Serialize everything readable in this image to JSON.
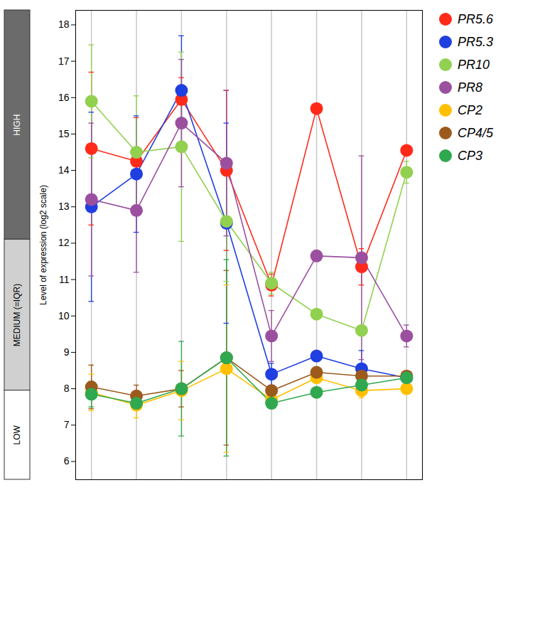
{
  "chart_data": {
    "type": "line",
    "y_label": "Level of expression (log2 scale)",
    "categories": [
      null,
      null,
      null,
      null,
      null,
      null,
      null,
      null
    ],
    "ylim": [
      5.5,
      18.4
    ],
    "yticks": [
      6,
      7,
      8,
      9,
      10,
      11,
      12,
      13,
      14,
      15,
      16,
      17,
      18
    ],
    "grid": "x",
    "legend": "right",
    "marker": "circle",
    "expression_levels": [
      {
        "label": "HIGH",
        "from": 12.1,
        "to": 18.4
      },
      {
        "label": "MEDIUM (=IQR)",
        "from": 7.95,
        "to": 12.1
      },
      {
        "label": "LOW",
        "from": 5.5,
        "to": 7.95
      }
    ],
    "series": [
      {
        "name": "PR5.6",
        "color": "#ff2a1a",
        "values": [
          14.6,
          14.25,
          15.95,
          14.0,
          10.85,
          15.7,
          11.35,
          14.55
        ],
        "errors": [
          2.1,
          1.2,
          0.6,
          2.2,
          0.3,
          0.05,
          0.5,
          0.1
        ]
      },
      {
        "name": "PR5.3",
        "color": "#1f3fe0",
        "values": [
          13.0,
          13.9,
          16.2,
          12.55,
          8.4,
          8.9,
          8.55,
          8.3
        ],
        "errors": [
          2.6,
          1.6,
          1.5,
          2.75,
          0.3,
          0.1,
          0.5,
          0.05
        ]
      },
      {
        "name": "PR10",
        "color": "#92d050",
        "values": [
          15.9,
          14.5,
          14.65,
          12.6,
          10.9,
          10.05,
          9.6,
          13.95
        ],
        "errors": [
          1.55,
          1.55,
          2.6,
          1.65,
          0.3,
          0.05,
          0.1,
          0.3
        ]
      },
      {
        "name": "PR8",
        "color": "#9b4f9f",
        "values": [
          13.2,
          12.9,
          15.3,
          14.2,
          9.45,
          11.65,
          11.6,
          9.45
        ],
        "errors": [
          2.1,
          1.7,
          1.75,
          2.0,
          0.7,
          0.15,
          2.8,
          0.3
        ]
      },
      {
        "name": "CP2",
        "color": "#ffc000",
        "values": [
          7.9,
          7.55,
          7.95,
          8.55,
          7.7,
          8.3,
          7.95,
          8.0
        ],
        "errors": [
          0.5,
          0.35,
          0.8,
          2.3,
          0.1,
          0.1,
          0.2,
          0.1
        ]
      },
      {
        "name": "CP4/5",
        "color": "#9c5a1c",
        "values": [
          8.05,
          7.8,
          8.0,
          8.85,
          7.95,
          8.45,
          8.35,
          8.35
        ],
        "errors": [
          0.6,
          0.3,
          0.5,
          2.4,
          0.1,
          0.1,
          0.15,
          0.1
        ]
      },
      {
        "name": "CP3",
        "color": "#2fa84f",
        "values": [
          7.85,
          7.6,
          8.0,
          8.85,
          7.6,
          7.9,
          8.1,
          8.3
        ],
        "errors": [
          0.35,
          0.2,
          1.3,
          2.7,
          0.1,
          0.1,
          0.1,
          0.1
        ]
      }
    ]
  }
}
